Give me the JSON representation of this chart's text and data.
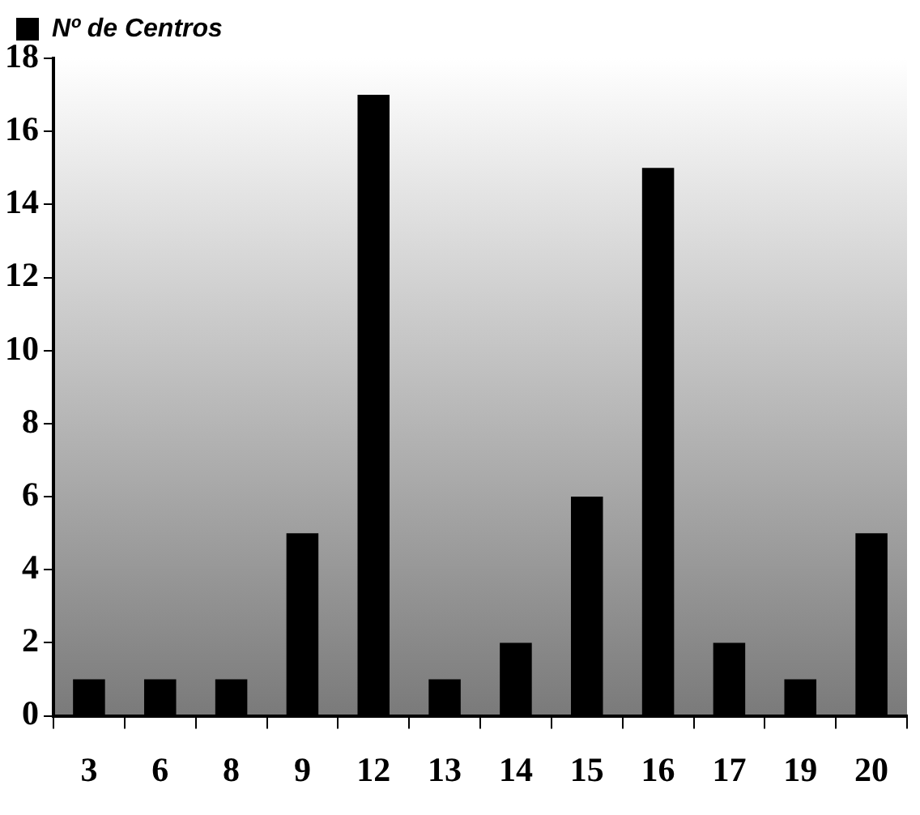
{
  "chart_data": {
    "type": "bar",
    "categories": [
      "3",
      "6",
      "8",
      "9",
      "12",
      "13",
      "14",
      "15",
      "16",
      "17",
      "19",
      "20"
    ],
    "series": [
      {
        "name": "Nº de Centros",
        "color": "#000000",
        "values": [
          1,
          1,
          1,
          5,
          17,
          1,
          2,
          6,
          15,
          2,
          1,
          5
        ]
      }
    ],
    "ylim": [
      0,
      18
    ],
    "yticks": [
      0,
      2,
      4,
      6,
      8,
      10,
      12,
      14,
      16,
      18
    ],
    "grid": false,
    "legend": "top left"
  }
}
